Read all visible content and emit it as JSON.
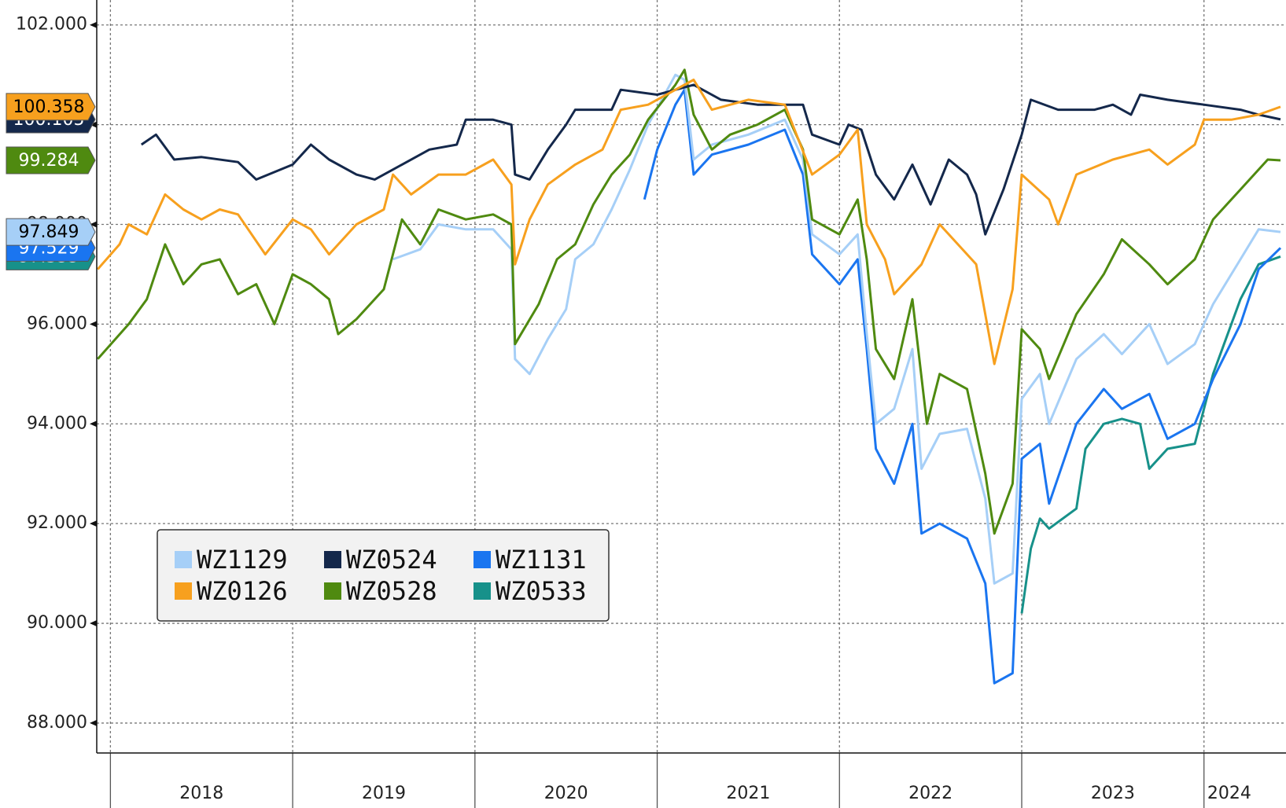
{
  "chart_data": {
    "type": "line",
    "xlim": [
      2017.925,
      2024.45
    ],
    "xticks": [
      2018,
      2019,
      2020,
      2021,
      2022,
      2023,
      2024
    ],
    "ylim": [
      87.4,
      102.5
    ],
    "yticks": [
      {
        "value": 88,
        "label": "88.000"
      },
      {
        "value": 90,
        "label": "90.000"
      },
      {
        "value": 92,
        "label": "92.000"
      },
      {
        "value": 94,
        "label": "94.000"
      },
      {
        "value": 96,
        "label": "96.000"
      },
      {
        "value": 98,
        "label": "98.000"
      },
      {
        "value": 100,
        "label": "100.000"
      },
      {
        "value": 102,
        "label": "102.000"
      }
    ],
    "grid": true,
    "legend": "lower-left",
    "series": [
      {
        "name": "WZ1129",
        "color": "#a6cff7",
        "end_label": "97.849",
        "x": [
          2019.55,
          2019.7,
          2019.8,
          2019.95,
          2020.1,
          2020.2,
          2020.22,
          2020.3,
          2020.4,
          2020.5,
          2020.55,
          2020.65,
          2020.75,
          2020.85,
          2020.95,
          2021.1,
          2021.15,
          2021.2,
          2021.3,
          2021.5,
          2021.7,
          2021.8,
          2021.85,
          2022.0,
          2022.1,
          2022.15,
          2022.2,
          2022.3,
          2022.4,
          2022.45,
          2022.55,
          2022.7,
          2022.8,
          2022.85,
          2022.95,
          2023.0,
          2023.1,
          2023.15,
          2023.3,
          2023.45,
          2023.55,
          2023.7,
          2023.8,
          2023.95,
          2024.05,
          2024.2,
          2024.3,
          2024.42
        ],
        "values": [
          97.3,
          97.5,
          98.0,
          97.9,
          97.9,
          97.5,
          95.3,
          95.0,
          95.7,
          96.3,
          97.3,
          97.6,
          98.3,
          99.1,
          100.0,
          101.0,
          100.9,
          99.3,
          99.6,
          99.8,
          100.1,
          99.3,
          97.8,
          97.4,
          97.8,
          95.8,
          94.0,
          94.3,
          95.5,
          93.1,
          93.8,
          93.9,
          92.5,
          90.8,
          91.0,
          94.5,
          95.0,
          94.0,
          95.3,
          95.8,
          95.4,
          96.0,
          95.2,
          95.6,
          96.4,
          97.3,
          97.9,
          97.849
        ]
      },
      {
        "name": "WZ0126",
        "color": "#f7a01e",
        "end_label": "100.358",
        "x": [
          2017.93,
          2018.05,
          2018.1,
          2018.2,
          2018.3,
          2018.4,
          2018.5,
          2018.6,
          2018.7,
          2018.85,
          2019.0,
          2019.1,
          2019.2,
          2019.35,
          2019.5,
          2019.55,
          2019.65,
          2019.8,
          2019.95,
          2020.1,
          2020.2,
          2020.22,
          2020.3,
          2020.4,
          2020.55,
          2020.7,
          2020.8,
          2020.95,
          2021.2,
          2021.3,
          2021.5,
          2021.7,
          2021.85,
          2022.0,
          2022.1,
          2022.15,
          2022.25,
          2022.3,
          2022.45,
          2022.55,
          2022.75,
          2022.85,
          2022.95,
          2023.0,
          2023.15,
          2023.2,
          2023.3,
          2023.5,
          2023.7,
          2023.8,
          2023.95,
          2024.0,
          2024.15,
          2024.3,
          2024.42
        ],
        "values": [
          97.1,
          97.6,
          98.0,
          97.8,
          98.6,
          98.3,
          98.1,
          98.3,
          98.2,
          97.4,
          98.1,
          97.9,
          97.4,
          98.0,
          98.3,
          99.0,
          98.6,
          99.0,
          99.0,
          99.3,
          98.8,
          97.2,
          98.1,
          98.8,
          99.2,
          99.5,
          100.3,
          100.4,
          100.9,
          100.3,
          100.5,
          100.4,
          99.0,
          99.4,
          99.9,
          98.0,
          97.3,
          96.6,
          97.2,
          98.0,
          97.2,
          95.2,
          96.7,
          99.0,
          98.5,
          98.0,
          99.0,
          99.3,
          99.5,
          99.2,
          99.6,
          100.1,
          100.1,
          100.2,
          100.358
        ]
      },
      {
        "name": "WZ0524",
        "color": "#14284b",
        "end_label": "100.105",
        "x": [
          2018.17,
          2018.25,
          2018.35,
          2018.5,
          2018.7,
          2018.8,
          2019.0,
          2019.1,
          2019.2,
          2019.35,
          2019.45,
          2019.6,
          2019.75,
          2019.9,
          2019.95,
          2020.1,
          2020.2,
          2020.22,
          2020.3,
          2020.4,
          2020.5,
          2020.55,
          2020.75,
          2020.8,
          2021.0,
          2021.2,
          2021.35,
          2021.55,
          2021.8,
          2021.85,
          2022.0,
          2022.05,
          2022.12,
          2022.2,
          2022.3,
          2022.4,
          2022.5,
          2022.6,
          2022.7,
          2022.75,
          2022.8,
          2022.9,
          2023.0,
          2023.05,
          2023.2,
          2023.4,
          2023.5,
          2023.6,
          2023.65,
          2023.8,
          2024.0,
          2024.2,
          2024.3,
          2024.42
        ],
        "values": [
          99.6,
          99.8,
          99.3,
          99.35,
          99.25,
          98.9,
          99.2,
          99.6,
          99.3,
          99.0,
          98.9,
          99.2,
          99.5,
          99.6,
          100.1,
          100.1,
          100.0,
          99.0,
          98.9,
          99.5,
          100.0,
          100.3,
          100.3,
          100.7,
          100.6,
          100.8,
          100.5,
          100.4,
          100.4,
          99.8,
          99.6,
          100.0,
          99.9,
          99.0,
          98.5,
          99.2,
          98.4,
          99.3,
          99.0,
          98.6,
          97.8,
          98.7,
          99.8,
          100.5,
          100.3,
          100.3,
          100.4,
          100.2,
          100.6,
          100.5,
          100.4,
          100.3,
          100.2,
          100.105
        ]
      },
      {
        "name": "WZ0528",
        "color": "#4f8a10",
        "end_label": "99.284",
        "x": [
          2017.93,
          2018.1,
          2018.2,
          2018.3,
          2018.4,
          2018.5,
          2018.6,
          2018.7,
          2018.8,
          2018.9,
          2019.0,
          2019.1,
          2019.2,
          2019.25,
          2019.35,
          2019.5,
          2019.6,
          2019.7,
          2019.8,
          2019.95,
          2020.1,
          2020.2,
          2020.22,
          2020.35,
          2020.45,
          2020.55,
          2020.65,
          2020.75,
          2020.85,
          2020.95,
          2021.1,
          2021.15,
          2021.2,
          2021.3,
          2021.4,
          2021.55,
          2021.7,
          2021.8,
          2021.85,
          2022.0,
          2022.1,
          2022.15,
          2022.2,
          2022.3,
          2022.4,
          2022.48,
          2022.55,
          2022.7,
          2022.8,
          2022.85,
          2022.95,
          2023.0,
          2023.1,
          2023.15,
          2023.3,
          2023.45,
          2023.55,
          2023.7,
          2023.8,
          2023.95,
          2024.05,
          2024.2,
          2024.35,
          2024.42
        ],
        "values": [
          95.3,
          96.0,
          96.5,
          97.6,
          96.8,
          97.2,
          97.3,
          96.6,
          96.8,
          96.0,
          97.0,
          96.8,
          96.5,
          95.8,
          96.1,
          96.7,
          98.1,
          97.6,
          98.3,
          98.1,
          98.2,
          98.0,
          95.6,
          96.4,
          97.3,
          97.6,
          98.4,
          99.0,
          99.4,
          100.1,
          100.8,
          101.1,
          100.2,
          99.5,
          99.8,
          100.0,
          100.3,
          99.5,
          98.1,
          97.8,
          98.5,
          97.3,
          95.5,
          94.9,
          96.5,
          94.0,
          95.0,
          94.7,
          93.0,
          91.8,
          92.8,
          95.9,
          95.5,
          94.9,
          96.2,
          97.0,
          97.7,
          97.2,
          96.8,
          97.3,
          98.1,
          98.7,
          99.3,
          99.284
        ]
      },
      {
        "name": "WZ1131",
        "color": "#1a75f0",
        "end_label": "97.529",
        "x": [
          2020.93,
          2021.0,
          2021.1,
          2021.15,
          2021.2,
          2021.3,
          2021.5,
          2021.7,
          2021.8,
          2021.85,
          2022.0,
          2022.1,
          2022.15,
          2022.2,
          2022.3,
          2022.4,
          2022.45,
          2022.55,
          2022.7,
          2022.8,
          2022.85,
          2022.95,
          2023.0,
          2023.1,
          2023.15,
          2023.3,
          2023.45,
          2023.55,
          2023.7,
          2023.8,
          2023.95,
          2024.05,
          2024.2,
          2024.3,
          2024.42
        ],
        "values": [
          98.5,
          99.5,
          100.4,
          100.7,
          99.0,
          99.4,
          99.6,
          99.9,
          99.0,
          97.4,
          96.8,
          97.3,
          95.5,
          93.5,
          92.8,
          94.0,
          91.8,
          92.0,
          91.7,
          90.8,
          88.8,
          89.0,
          93.3,
          93.6,
          92.4,
          94.0,
          94.7,
          94.3,
          94.6,
          93.7,
          94.0,
          94.9,
          96.0,
          97.1,
          97.529
        ]
      },
      {
        "name": "WZ0533",
        "color": "#17918a",
        "end_label": "97.355",
        "x": [
          2023.0,
          2023.05,
          2023.1,
          2023.15,
          2023.3,
          2023.35,
          2023.45,
          2023.55,
          2023.65,
          2023.7,
          2023.8,
          2023.95,
          2024.05,
          2024.2,
          2024.3,
          2024.42
        ],
        "values": [
          90.2,
          91.5,
          92.1,
          91.9,
          92.3,
          93.5,
          94.0,
          94.1,
          94.0,
          93.1,
          93.5,
          93.6,
          95.0,
          96.5,
          97.2,
          97.355
        ]
      }
    ]
  }
}
